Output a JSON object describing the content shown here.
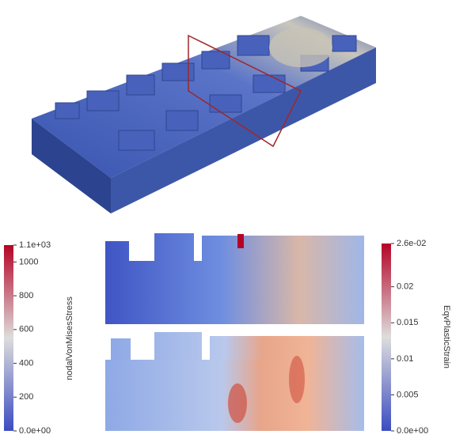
{
  "left_colorbar": {
    "title": "nodalVonMisesStress",
    "range": [
      0,
      1100
    ],
    "ticks": [
      {
        "value": 0,
        "label": "0.0e+00"
      },
      200,
      400,
      600,
      800,
      1000,
      {
        "value": 1100,
        "label": "1.1e+03"
      }
    ]
  },
  "right_colorbar": {
    "title": "EqvPlasticStrain",
    "range": [
      0,
      0.026
    ],
    "ticks": [
      {
        "value": 0,
        "label": "0.0e+00"
      },
      0.005,
      0.01,
      0.015,
      0.02,
      {
        "value": 0.026,
        "label": "2.6e-02"
      }
    ]
  }
}
